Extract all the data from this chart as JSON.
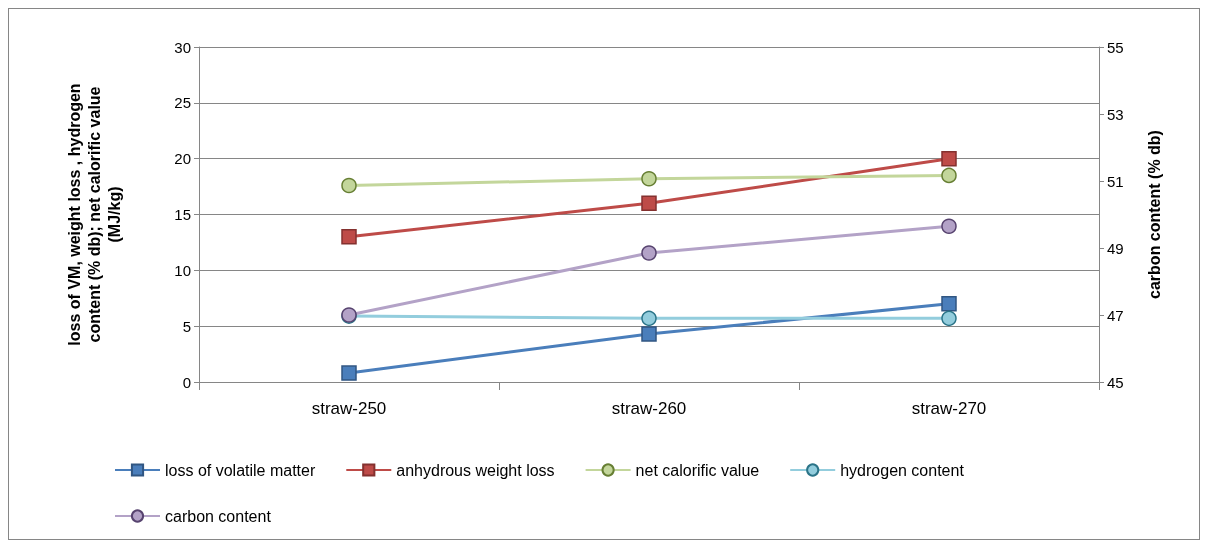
{
  "chart_data": {
    "type": "line",
    "categories": [
      "straw-250",
      "straw-260",
      "straw-270"
    ],
    "ylabel": "loss of VM, weight loss , hydrogen content (% db); net calorific value (MJ/kg)",
    "y2label": "carbon content (% db)",
    "ylim": [
      0,
      30
    ],
    "yticks": [
      0,
      5,
      10,
      15,
      20,
      25,
      30
    ],
    "y2lim": [
      45,
      55
    ],
    "y2ticks": [
      45,
      47,
      49,
      51,
      53,
      55
    ],
    "grid": "y",
    "legend": "bottom",
    "series": [
      {
        "name": "loss of volatile matter",
        "color": "#4a7ebb",
        "marker": "square",
        "values": [
          0.8,
          4.3,
          7.0
        ]
      },
      {
        "name": "anhydrous weight loss",
        "color": "#be4b48",
        "marker": "square",
        "values": [
          13,
          16,
          20
        ]
      },
      {
        "name": "net calorific value",
        "color": "#c3d69b",
        "marker": "circle",
        "values": [
          17.6,
          18.2,
          18.5
        ]
      },
      {
        "name": "hydrogen content",
        "color": "#93cddd",
        "marker": "circle",
        "values": [
          5.9,
          5.7,
          5.7
        ]
      },
      {
        "name": "carbon content",
        "color": "#b3a2c7",
        "marker": "circle",
        "axis": "y2",
        "values": [
          47.0,
          48.85,
          49.65
        ]
      }
    ]
  }
}
